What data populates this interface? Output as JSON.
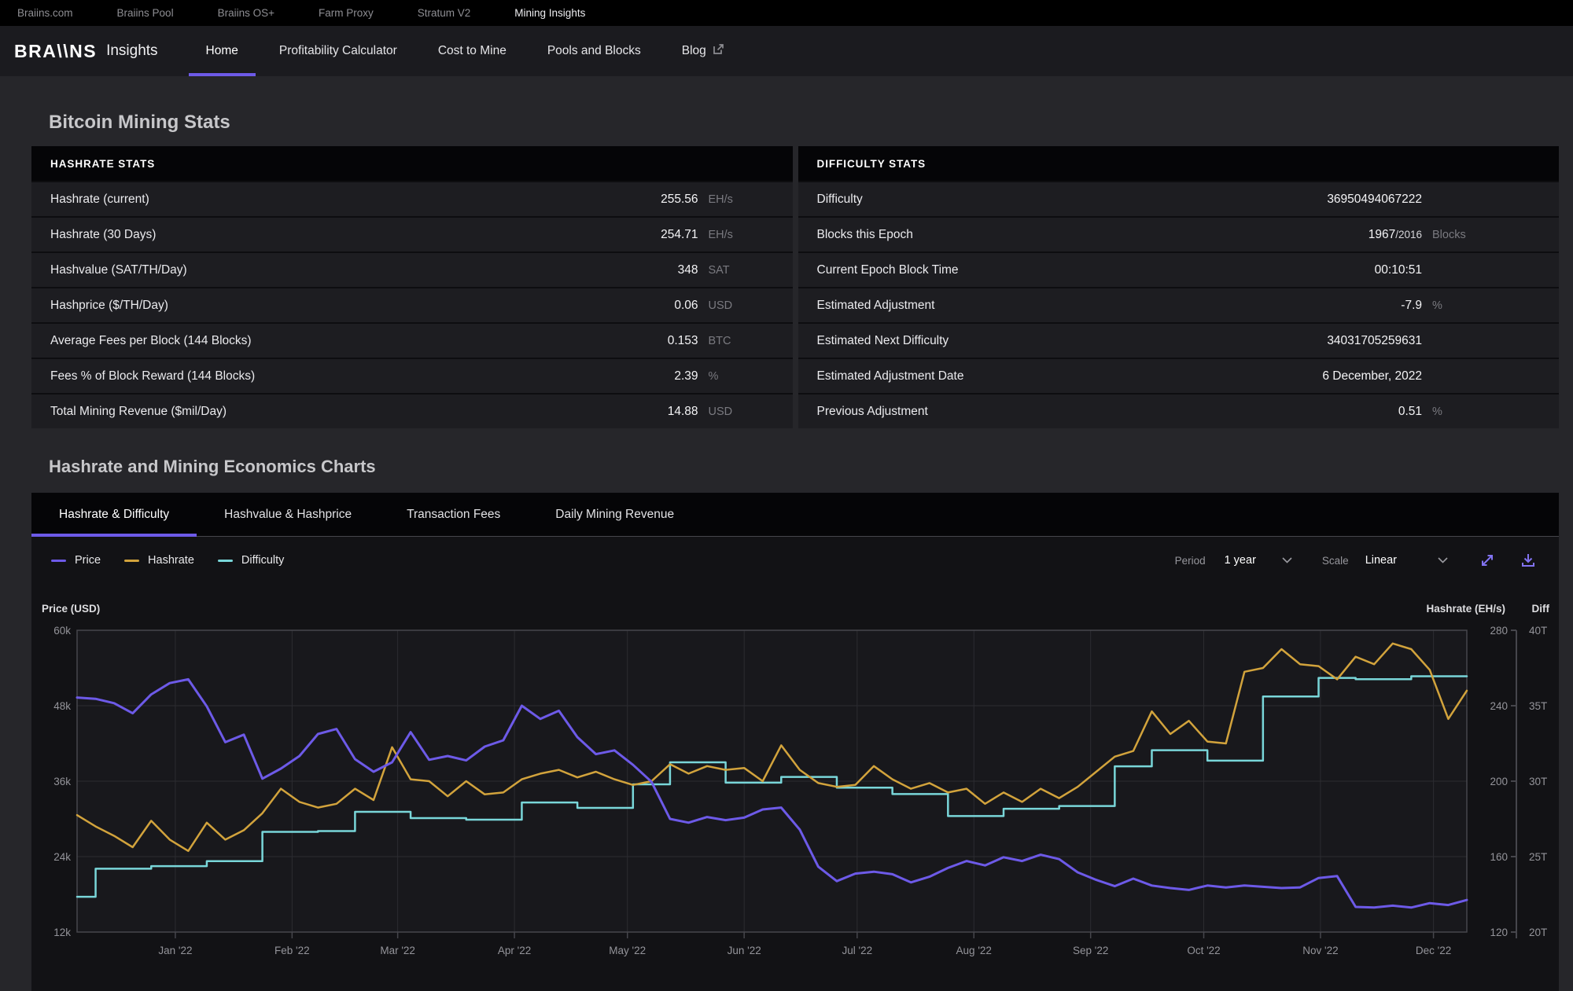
{
  "topbar": {
    "items": [
      {
        "label": "Braiins.com",
        "active": false
      },
      {
        "label": "Braiins Pool",
        "active": false
      },
      {
        "label": "Braiins OS+",
        "active": false
      },
      {
        "label": "Farm Proxy",
        "active": false
      },
      {
        "label": "Stratum V2",
        "active": false
      },
      {
        "label": "Mining Insights",
        "active": true
      }
    ]
  },
  "nav": {
    "logo": "BRA\\\\NS",
    "logo_suffix": "Insights",
    "items": [
      {
        "label": "Home",
        "active": true,
        "external": false
      },
      {
        "label": "Profitability Calculator",
        "active": false,
        "external": false
      },
      {
        "label": "Cost to Mine",
        "active": false,
        "external": false
      },
      {
        "label": "Pools and Blocks",
        "active": false,
        "external": false
      },
      {
        "label": "Blog",
        "active": false,
        "external": true
      }
    ]
  },
  "page": {
    "title": "Bitcoin Mining Stats",
    "charts_section_title": "Hashrate and Mining Economics Charts"
  },
  "tables": [
    {
      "header": "HASHRATE STATS",
      "unit_class": "unit-narrow",
      "rows": [
        {
          "label": "Hashrate (current)",
          "value": "255.56",
          "suffix": "",
          "unit": "EH/s"
        },
        {
          "label": "Hashrate (30 Days)",
          "value": "254.71",
          "suffix": "",
          "unit": "EH/s"
        },
        {
          "label": "Hashvalue (SAT/TH/Day)",
          "value": "348",
          "suffix": "",
          "unit": "SAT"
        },
        {
          "label": "Hashprice ($/TH/Day)",
          "value": "0.06",
          "suffix": "",
          "unit": "USD"
        },
        {
          "label": "Average Fees per Block (144 Blocks)",
          "value": "0.153",
          "suffix": "",
          "unit": "BTC"
        },
        {
          "label": "Fees % of Block Reward (144 Blocks)",
          "value": "2.39",
          "suffix": "",
          "unit": "%"
        },
        {
          "label": "Total Mining Revenue ($mil/Day)",
          "value": "14.88",
          "suffix": "",
          "unit": "USD"
        }
      ]
    },
    {
      "header": "DIFFICULTY STATS",
      "unit_class": "unit-wide",
      "rows": [
        {
          "label": "Difficulty",
          "value": "36950494067222",
          "suffix": "",
          "unit": ""
        },
        {
          "label": "Blocks this Epoch",
          "value": "1967",
          "suffix": "/2016",
          "unit": "Blocks"
        },
        {
          "label": "Current Epoch Block Time",
          "value": "00:10:51",
          "suffix": "",
          "unit": ""
        },
        {
          "label": "Estimated Adjustment",
          "value": "-7.9",
          "suffix": "",
          "unit": "%"
        },
        {
          "label": "Estimated Next Difficulty",
          "value": "34031705259631",
          "suffix": "",
          "unit": ""
        },
        {
          "label": "Estimated Adjustment Date",
          "value": "6 December, 2022",
          "suffix": "",
          "unit": ""
        },
        {
          "label": "Previous Adjustment",
          "value": "0.51",
          "suffix": "",
          "unit": "%"
        }
      ]
    }
  ],
  "chart_tabs": [
    {
      "label": "Hashrate & Difficulty",
      "active": true
    },
    {
      "label": "Hashvalue & Hashprice",
      "active": false
    },
    {
      "label": "Transaction Fees",
      "active": false
    },
    {
      "label": "Daily Mining Revenue",
      "active": false
    }
  ],
  "controls": {
    "period_label": "Period",
    "period_value": "1 year",
    "scale_label": "Scale",
    "scale_value": "Linear"
  },
  "colors": {
    "accent": "#6d5ae8",
    "price": "#6d5ae8",
    "hashrate": "#d2a33c",
    "difficulty": "#79d6d9",
    "icon": "#8273f2"
  },
  "chart_data": {
    "type": "line",
    "x_start": "Dec 2021",
    "x_end": "Dec 2022",
    "grid": true,
    "legend_position": "top-left",
    "axes": {
      "left": {
        "title": "Price (USD)",
        "ticks": [
          "60k",
          "48k",
          "36k",
          "24k",
          "12k"
        ],
        "min": 12,
        "max": 60
      },
      "right1": {
        "title": "Hashrate (EH/s)",
        "ticks": [
          "280",
          "240",
          "200",
          "160",
          "120"
        ],
        "min": 120,
        "max": 280
      },
      "right2": {
        "title": "Diff",
        "ticks": [
          "40T",
          "35T",
          "30T",
          "25T",
          "20T"
        ],
        "min": 20,
        "max": 40
      }
    },
    "months": [
      {
        "label": "Jan '22",
        "f": 0.0707
      },
      {
        "label": "Feb '22",
        "f": 0.1547
      },
      {
        "label": "Mar '22",
        "f": 0.2307
      },
      {
        "label": "Apr '22",
        "f": 0.3147
      },
      {
        "label": "May '22",
        "f": 0.396
      },
      {
        "label": "Jun '22",
        "f": 0.48
      },
      {
        "label": "Jul '22",
        "f": 0.5613
      },
      {
        "label": "Aug '22",
        "f": 0.6453
      },
      {
        "label": "Sep '22",
        "f": 0.7293
      },
      {
        "label": "Oct '22",
        "f": 0.8107
      },
      {
        "label": "Nov '22",
        "f": 0.8947
      },
      {
        "label": "Dec '22",
        "f": 0.976
      }
    ],
    "series": [
      {
        "name": "Price",
        "axis": "left",
        "unit": "k USD",
        "step": false,
        "width": 3,
        "values": [
          49.3,
          49.1,
          48.4,
          46.8,
          49.8,
          51.6,
          52.2,
          47.9,
          42.2,
          43.4,
          36.4,
          38.0,
          40.0,
          43.5,
          44.3,
          39.5,
          37.5,
          39.0,
          43.8,
          39.4,
          40.0,
          39.3,
          41.5,
          42.5,
          48.0,
          45.9,
          47.2,
          43.0,
          40.3,
          40.9,
          38.6,
          35.9,
          30.0,
          29.4,
          30.3,
          29.8,
          30.2,
          31.5,
          31.8,
          28.3,
          22.4,
          20.1,
          21.3,
          21.6,
          21.2,
          19.9,
          20.8,
          22.2,
          23.3,
          22.6,
          23.9,
          23.3,
          24.3,
          23.6,
          21.5,
          20.3,
          19.3,
          20.5,
          19.4,
          19.0,
          18.7,
          19.4,
          19.1,
          19.4,
          19.2,
          19.0,
          19.1,
          20.6,
          20.9,
          16.0,
          15.9,
          16.2,
          15.9,
          16.6,
          16.3,
          17.1
        ]
      },
      {
        "name": "Hashrate",
        "axis": "right1",
        "unit": "EH/s",
        "step": false,
        "width": 2.5,
        "values": [
          182,
          176,
          171,
          165,
          179,
          169,
          163,
          178,
          169,
          174,
          183,
          196,
          189,
          186,
          188,
          196,
          190,
          218,
          201,
          200,
          192,
          200,
          193,
          194,
          201,
          204,
          206,
          202,
          205,
          201,
          198,
          200,
          209,
          204,
          208,
          206,
          207,
          200,
          219,
          206,
          199,
          197,
          198,
          208,
          201,
          196,
          199,
          194,
          196,
          188,
          194,
          189,
          196,
          191,
          197,
          205,
          213,
          216,
          237,
          225,
          232,
          221,
          220,
          258,
          260,
          270,
          262,
          261,
          254,
          266,
          262,
          273,
          270,
          259,
          233,
          248
        ]
      },
      {
        "name": "Difficulty",
        "axis": "right2",
        "unit": "T",
        "step": true,
        "width": 2.5,
        "values": [
          22.34,
          24.2,
          24.2,
          24.2,
          24.37,
          24.37,
          24.37,
          24.7,
          24.7,
          24.7,
          26.64,
          26.64,
          26.64,
          26.69,
          26.69,
          27.97,
          27.97,
          27.97,
          27.55,
          27.55,
          27.55,
          27.45,
          27.45,
          27.45,
          28.59,
          28.59,
          28.59,
          28.23,
          28.23,
          28.23,
          29.79,
          29.79,
          31.25,
          31.25,
          31.25,
          29.9,
          29.9,
          29.9,
          30.28,
          30.28,
          30.28,
          29.57,
          29.57,
          29.57,
          29.15,
          29.15,
          29.15,
          27.69,
          27.69,
          27.69,
          28.17,
          28.17,
          28.17,
          28.35,
          28.35,
          28.35,
          30.98,
          30.98,
          32.05,
          32.05,
          32.05,
          31.36,
          31.36,
          31.36,
          35.61,
          35.61,
          35.61,
          36.84,
          36.84,
          36.76,
          36.76,
          36.76,
          36.95,
          36.95,
          36.95,
          36.95
        ]
      }
    ]
  }
}
